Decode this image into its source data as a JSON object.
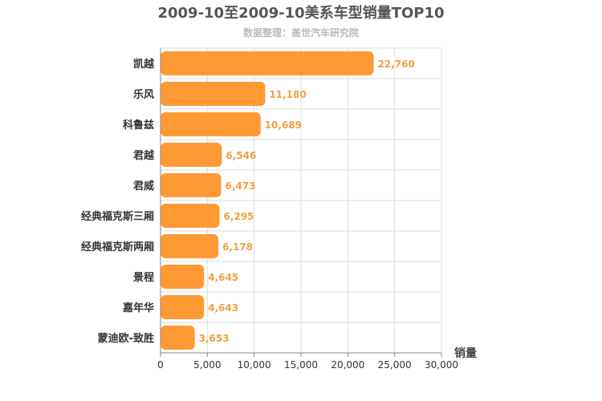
{
  "chart_data": {
    "type": "bar",
    "orientation": "horizontal",
    "title": "2009-10至2009-10美系车型销量TOP10",
    "subtitle": "数据整理：盖世汽车研究院",
    "xlabel": "销量",
    "ylabel": "",
    "xlim": [
      0,
      30000
    ],
    "xticks": [
      "0",
      "5,000",
      "10,000",
      "15,000",
      "20,000",
      "25,000",
      "30,000"
    ],
    "categories": [
      "凯越",
      "乐风",
      "科鲁兹",
      "君越",
      "君威",
      "经典福克斯三厢",
      "经典福克斯两厢",
      "景程",
      "嘉年华",
      "蒙迪欧-致胜"
    ],
    "values": [
      22760,
      11180,
      10689,
      6546,
      6473,
      6295,
      6178,
      4645,
      4643,
      3653
    ],
    "value_labels": [
      "22,760",
      "11,180",
      "10,689",
      "6,546",
      "6,473",
      "6,295",
      "6,178",
      "4,645",
      "4,643",
      "3,653"
    ],
    "grid": true,
    "colors": {
      "bar": "#ff9933",
      "bar_label": "#f0a040",
      "title": "#555555",
      "subtitle": "#bbbbbb",
      "grid": "#dddddd"
    }
  }
}
